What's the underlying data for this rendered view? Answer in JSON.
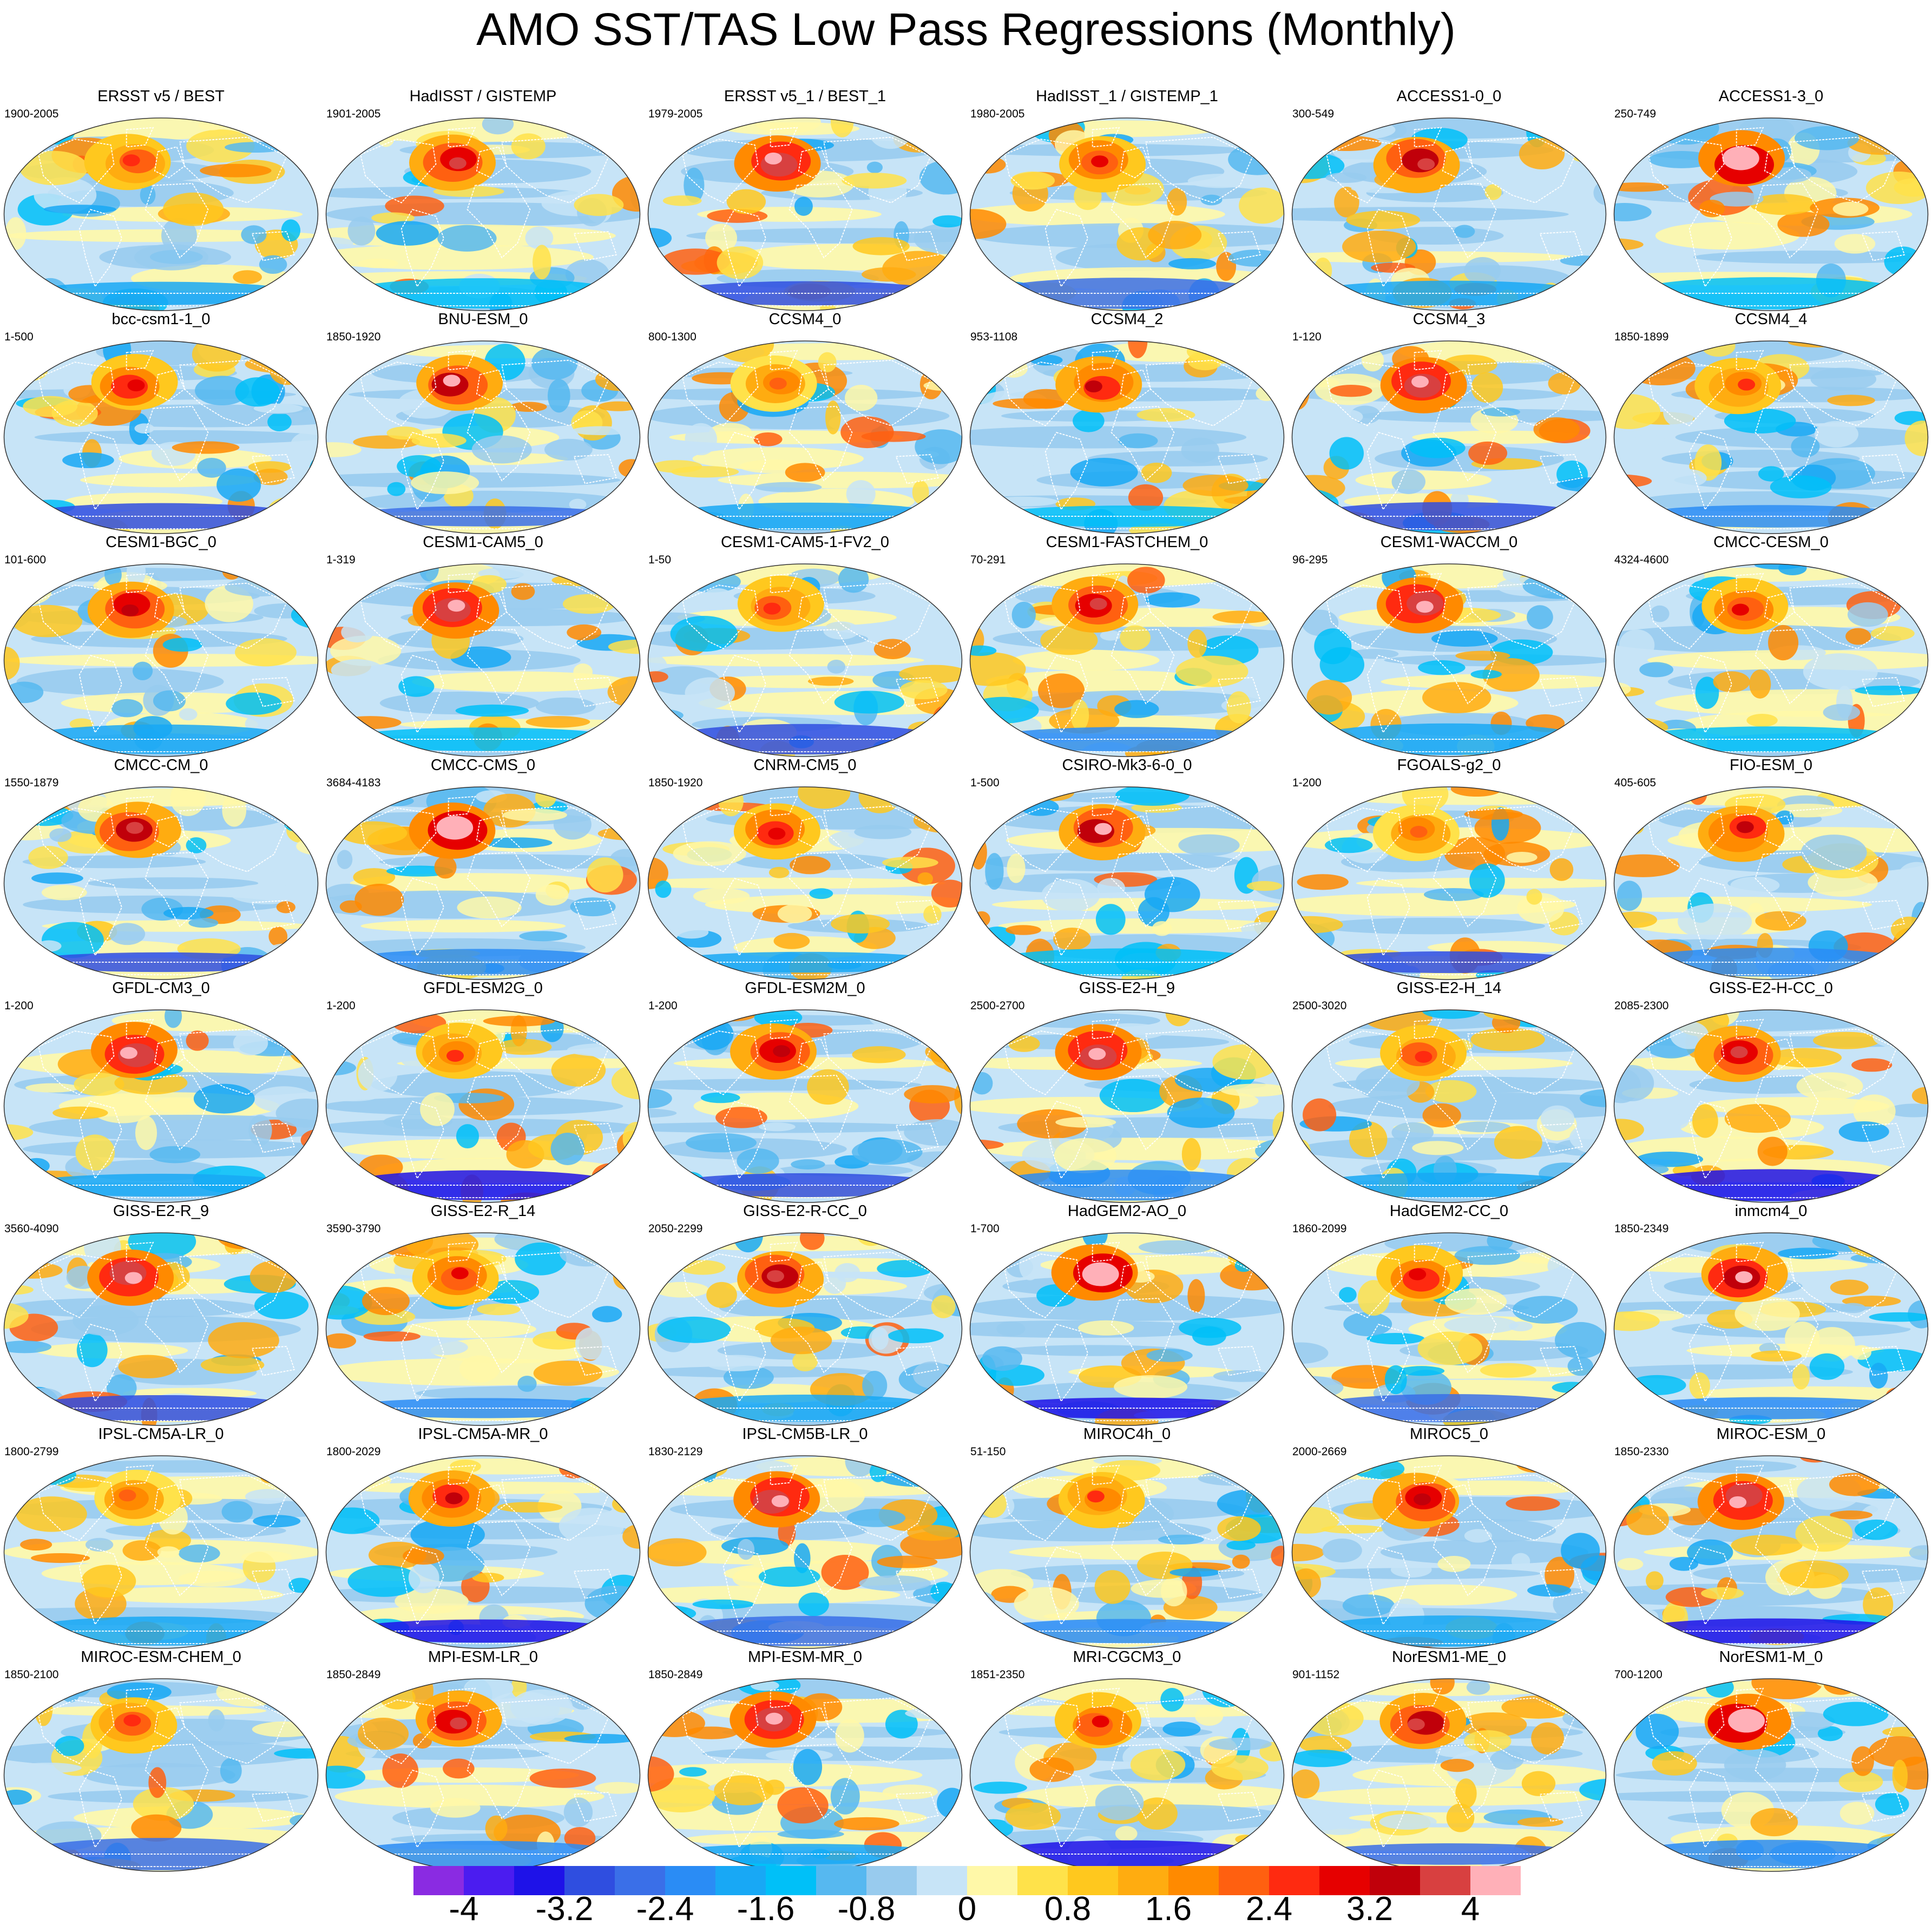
{
  "title": "AMO SST/TAS Low Pass Regressions (Monthly)",
  "colorbar": {
    "colors": [
      "#8a2be2",
      "#4b1cf0",
      "#1e12e8",
      "#2f4ee0",
      "#3a6fe8",
      "#2a8cf5",
      "#18a8f5",
      "#00c0f8",
      "#56b8f0",
      "#98cbee",
      "#c7e4f7",
      "#fff8a8",
      "#ffe24a",
      "#ffc81e",
      "#ffac10",
      "#ff8a00",
      "#ff6010",
      "#ff2a10",
      "#e60000",
      "#c0000a",
      "#d84040",
      "#ffb0b8"
    ],
    "labels": [
      "-4",
      "-3.2",
      "-2.4",
      "-1.6",
      "-0.8",
      "0",
      "0.8",
      "1.6",
      "2.4",
      "3.2",
      "4"
    ]
  },
  "panels": [
    {
      "title": "ERSST v5 / BEST",
      "years": "1900-2005"
    },
    {
      "title": "HadISST / GISTEMP",
      "years": "1901-2005"
    },
    {
      "title": "ERSST v5_1 / BEST_1",
      "years": "1979-2005"
    },
    {
      "title": "HadISST_1 / GISTEMP_1",
      "years": "1980-2005"
    },
    {
      "title": "ACCESS1-0_0",
      "years": "300-549"
    },
    {
      "title": "ACCESS1-3_0",
      "years": "250-749"
    },
    {
      "title": "bcc-csm1-1_0",
      "years": "1-500"
    },
    {
      "title": "BNU-ESM_0",
      "years": "1850-1920"
    },
    {
      "title": "CCSM4_0",
      "years": "800-1300"
    },
    {
      "title": "CCSM4_2",
      "years": "953-1108"
    },
    {
      "title": "CCSM4_3",
      "years": "1-120"
    },
    {
      "title": "CCSM4_4",
      "years": "1850-1899"
    },
    {
      "title": "CESM1-BGC_0",
      "years": "101-600"
    },
    {
      "title": "CESM1-CAM5_0",
      "years": "1-319"
    },
    {
      "title": "CESM1-CAM5-1-FV2_0",
      "years": "1-50"
    },
    {
      "title": "CESM1-FASTCHEM_0",
      "years": "70-291"
    },
    {
      "title": "CESM1-WACCM_0",
      "years": "96-295"
    },
    {
      "title": "CMCC-CESM_0",
      "years": "4324-4600"
    },
    {
      "title": "CMCC-CM_0",
      "years": "1550-1879"
    },
    {
      "title": "CMCC-CMS_0",
      "years": "3684-4183"
    },
    {
      "title": "CNRM-CM5_0",
      "years": "1850-1920"
    },
    {
      "title": "CSIRO-Mk3-6-0_0",
      "years": "1-500"
    },
    {
      "title": "FGOALS-g2_0",
      "years": "1-200"
    },
    {
      "title": "FIO-ESM_0",
      "years": "405-605"
    },
    {
      "title": "GFDL-CM3_0",
      "years": "1-200"
    },
    {
      "title": "GFDL-ESM2G_0",
      "years": "1-200"
    },
    {
      "title": "GFDL-ESM2M_0",
      "years": "1-200"
    },
    {
      "title": "GISS-E2-H_9",
      "years": "2500-2700"
    },
    {
      "title": "GISS-E2-H_14",
      "years": "2500-3020"
    },
    {
      "title": "GISS-E2-H-CC_0",
      "years": "2085-2300"
    },
    {
      "title": "GISS-E2-R_9",
      "years": "3560-4090"
    },
    {
      "title": "GISS-E2-R_14",
      "years": "3590-3790"
    },
    {
      "title": "GISS-E2-R-CC_0",
      "years": "2050-2299"
    },
    {
      "title": "HadGEM2-AO_0",
      "years": "1-700"
    },
    {
      "title": "HadGEM2-CC_0",
      "years": "1860-2099"
    },
    {
      "title": "inmcm4_0",
      "years": "1850-2349"
    },
    {
      "title": "IPSL-CM5A-LR_0",
      "years": "1800-2799"
    },
    {
      "title": "IPSL-CM5A-MR_0",
      "years": "1800-2029"
    },
    {
      "title": "IPSL-CM5B-LR_0",
      "years": "1830-2129"
    },
    {
      "title": "MIROC4h_0",
      "years": "51-150"
    },
    {
      "title": "MIROC5_0",
      "years": "2000-2669"
    },
    {
      "title": "MIROC-ESM_0",
      "years": "1850-2330"
    },
    {
      "title": "MIROC-ESM-CHEM_0",
      "years": "1850-2100"
    },
    {
      "title": "MPI-ESM-LR_0",
      "years": "1850-2849"
    },
    {
      "title": "MPI-ESM-MR_0",
      "years": "1850-2849"
    },
    {
      "title": "MRI-CGCM3_0",
      "years": "1851-2350"
    },
    {
      "title": "NorESM1-ME_0",
      "years": "901-1152"
    },
    {
      "title": "NorESM1-M_0",
      "years": "700-1200"
    }
  ]
}
